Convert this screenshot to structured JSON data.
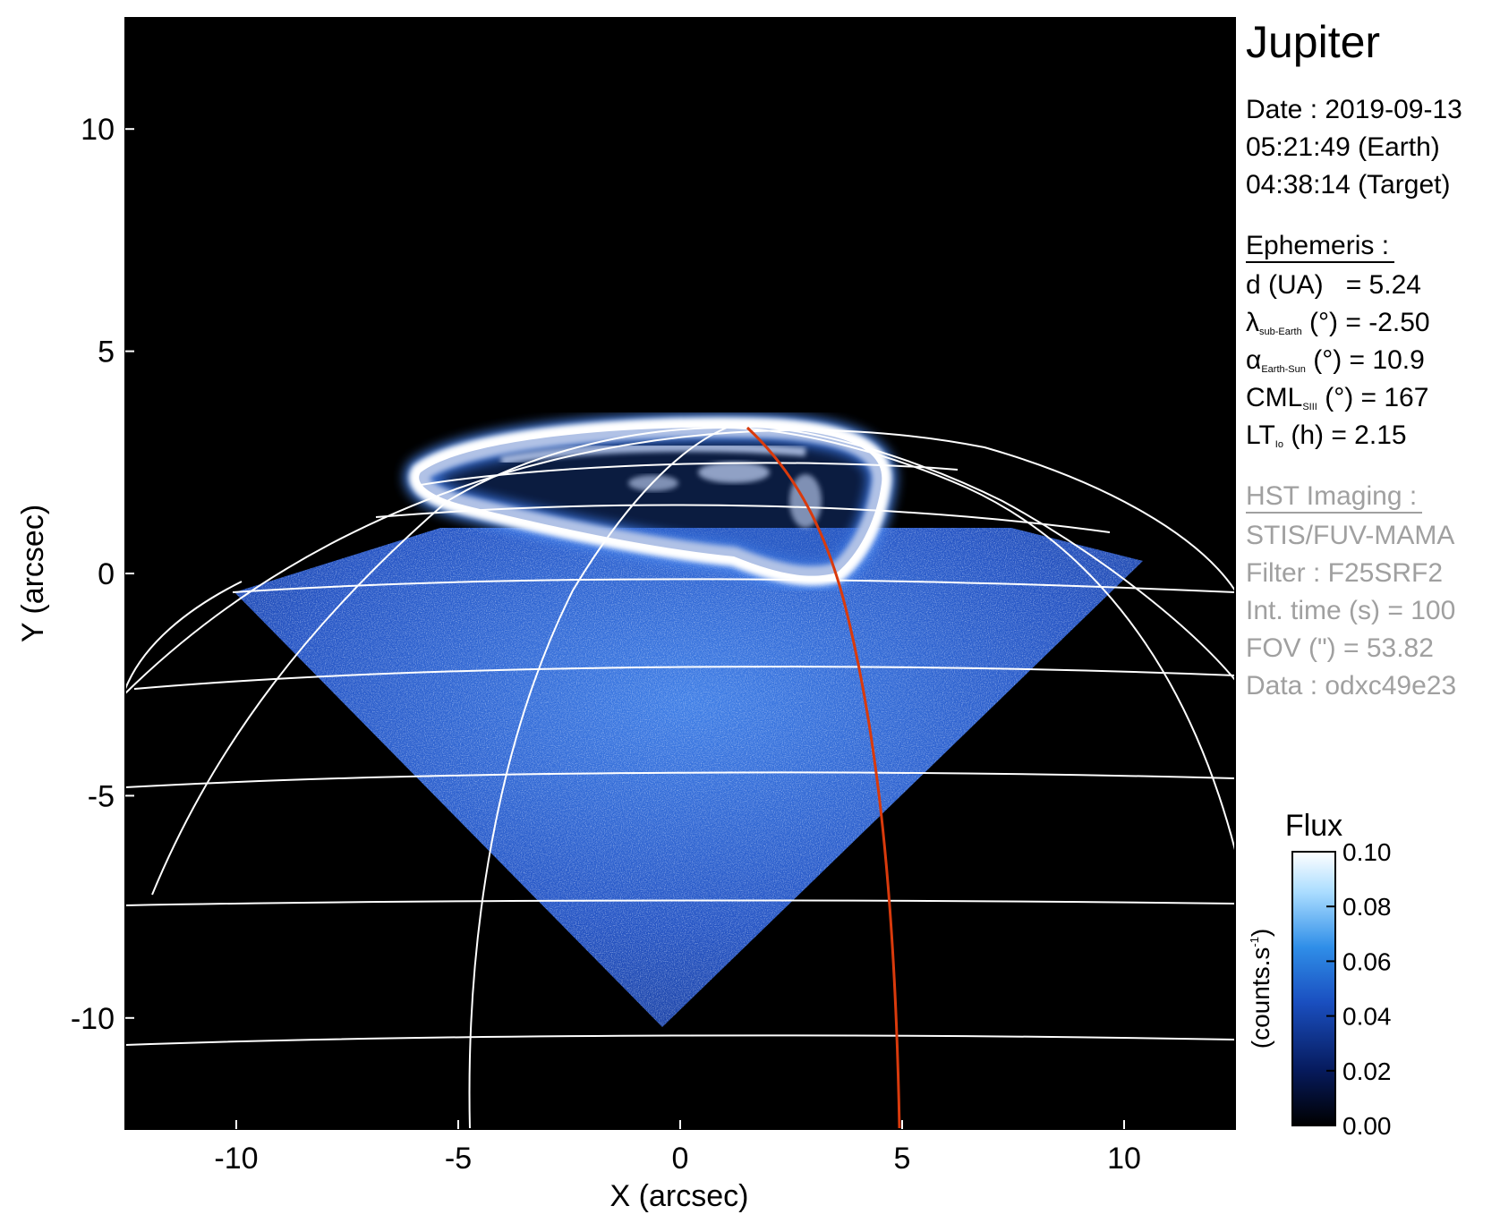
{
  "title": "Jupiter",
  "date": {
    "line1": "Date : 2019-09-13",
    "line2": "05:21:49 (Earth)",
    "line3": "04:38:14 (Target)"
  },
  "ephemeris": {
    "header": "Ephemeris :",
    "d_label": "d (UA)",
    "d_value": "= 5.24",
    "lambda_sym": "λ",
    "lambda_sub": "sub-Earth",
    "lambda_rest": "(°) = -2.50",
    "alpha_sym": "α",
    "alpha_sub": "Earth-Sun",
    "alpha_rest": "(°) = 10.9",
    "cml_label": "CML",
    "cml_sub": "SIII",
    "cml_rest": "(°) = 167",
    "lt_label": "LT",
    "lt_sub": "Io",
    "lt_rest": "(h) = 2.15"
  },
  "hst": {
    "header": "HST Imaging :",
    "instrument": "STIS/FUV-MAMA",
    "filter": "Filter : F25SRF2",
    "int_time": "Int. time (s) = 100",
    "fov": "FOV (\") = 53.82",
    "data": "Data : odxc49e23"
  },
  "colorbar": {
    "title": "Flux",
    "unit_label": "(counts.s",
    "unit_sup": "-1",
    "unit_close": ")",
    "ticks": [
      "0.10",
      "0.08",
      "0.06",
      "0.04",
      "0.02",
      "0.00"
    ],
    "tick_values": [
      0.1,
      0.08,
      0.06,
      0.04,
      0.02,
      0.0
    ],
    "range": [
      0.0,
      0.1
    ],
    "colors": [
      "#000000",
      "#0a1f6e",
      "#1e5fd0",
      "#3aa0f0",
      "#bfe4ff",
      "#ffffff"
    ]
  },
  "axes": {
    "xlabel": "X (arcsec)",
    "ylabel": "Y (arcsec)",
    "xticks": [
      -10,
      -5,
      0,
      5,
      10
    ],
    "yticks": [
      10,
      5,
      0,
      -5,
      -10
    ],
    "xlim": [
      -12.5,
      12.5
    ],
    "ylim": [
      -12.5,
      12.5
    ]
  },
  "colors": {
    "background": "#000000",
    "grid": "#ffffff",
    "meridian_highlight": "#d93a0c",
    "emission": "#2b63d9"
  }
}
